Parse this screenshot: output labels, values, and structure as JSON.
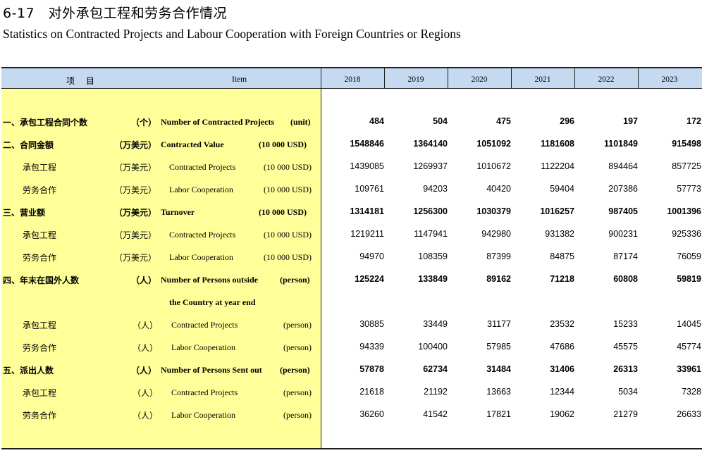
{
  "title": {
    "cn": "6-17　对外承包工程和劳务合作情况",
    "en": "Statistics on Contracted Projects and Labour Cooperation with Foreign Countries or Regions"
  },
  "header": {
    "item_cn_1": "项",
    "item_cn_2": "目",
    "item_en": "Item",
    "years": [
      "2018",
      "2019",
      "2020",
      "2021",
      "2022",
      "2023"
    ]
  },
  "rows": [
    {
      "cn": "一、承包工程合同个数",
      "unit_cn": "（个）",
      "en": "Number of  Contracted Projects",
      "unit_en": "(unit)",
      "values": [
        "484",
        "504",
        "475",
        "296",
        "197",
        "172"
      ]
    },
    {
      "cn": "二、合同金额",
      "unit_cn": "（万美元）",
      "en": "Contracted Value",
      "unit_en": "(10 000 USD)",
      "values": [
        "1548846",
        "1364140",
        "1051092",
        "1181608",
        "1101849",
        "915498"
      ]
    },
    {
      "cn": "承包工程",
      "unit_cn": "（万美元）",
      "en": "Contracted Projects",
      "unit_en": "(10 000 USD)",
      "values": [
        "1439085",
        "1269937",
        "1010672",
        "1122204",
        "894464",
        "857725"
      ]
    },
    {
      "cn": "劳务合作",
      "unit_cn": "（万美元）",
      "en": "Labor Cooperation",
      "unit_en": "(10 000 USD)",
      "values": [
        "109761",
        "94203",
        "40420",
        "59404",
        "207386",
        "57773"
      ]
    },
    {
      "cn": "三、营业额",
      "unit_cn": "（万美元）",
      "en": "Turnover",
      "unit_en": "(10 000 USD)",
      "values": [
        "1314181",
        "1256300",
        "1030379",
        "1016257",
        "987405",
        "1001396"
      ]
    },
    {
      "cn": "承包工程",
      "unit_cn": "（万美元）",
      "en": "Contracted Projects",
      "unit_en": "(10 000 USD)",
      "values": [
        "1219211",
        "1147941",
        "942980",
        "931382",
        "900231",
        "925336"
      ]
    },
    {
      "cn": "劳务合作",
      "unit_cn": "（万美元）",
      "en": "Labor Cooperation",
      "unit_en": "(10 000 USD)",
      "values": [
        "94970",
        "108359",
        "87399",
        "84875",
        "87174",
        "76059"
      ]
    },
    {
      "cn": "四、年末在国外人数",
      "unit_cn": "（人）",
      "en": "Number of Persons outside",
      "unit_en": "(person)",
      "values": [
        "125224",
        "133849",
        "89162",
        "71218",
        "60808",
        "59819"
      ]
    },
    {
      "cn": "",
      "unit_cn": "",
      "en": "the Country at year end",
      "unit_en": "",
      "values": [
        "",
        "",
        "",
        "",
        "",
        ""
      ]
    },
    {
      "cn": "承包工程",
      "unit_cn": "（人）",
      "en": "Contracted Projects",
      "unit_en": "(person)",
      "values": [
        "30885",
        "33449",
        "31177",
        "23532",
        "15233",
        "14045"
      ]
    },
    {
      "cn": "劳务合作",
      "unit_cn": "（人）",
      "en": "Labor Cooperation",
      "unit_en": "(person)",
      "values": [
        "94339",
        "100400",
        "57985",
        "47686",
        "45575",
        "45774"
      ]
    },
    {
      "cn": "五、派出人数",
      "unit_cn": "（人）",
      "en": "Number of Persons Sent out",
      "unit_en": "(person)",
      "values": [
        "57878",
        "62734",
        "31484",
        "31406",
        "26313",
        "33961"
      ]
    },
    {
      "cn": "承包工程",
      "unit_cn": "（人）",
      "en": "Contracted Projects",
      "unit_en": "(person)",
      "values": [
        "21618",
        "21192",
        "13663",
        "12344",
        "5034",
        "7328"
      ]
    },
    {
      "cn": "劳务合作",
      "unit_cn": "（人）",
      "en": "Labor Cooperation",
      "unit_en": "(person)",
      "values": [
        "36260",
        "41542",
        "17821",
        "19062",
        "21279",
        "26633"
      ]
    }
  ]
}
